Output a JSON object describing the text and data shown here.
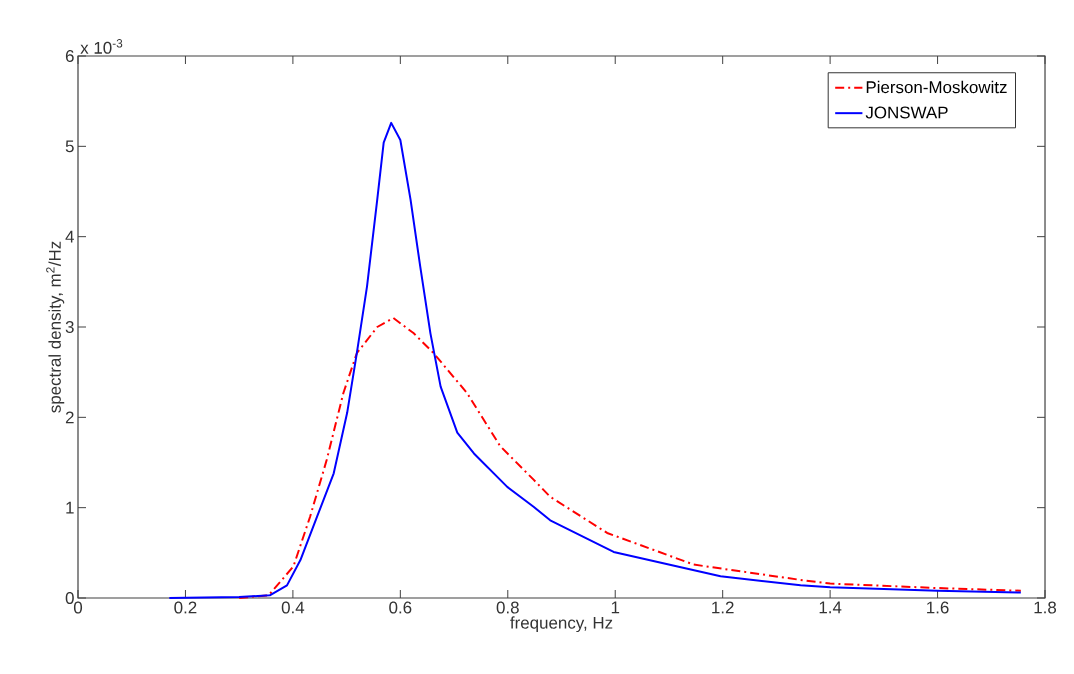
{
  "chart_data": {
    "type": "line",
    "xlabel": "frequency, Hz",
    "ylabel": "spectral density, m$^{2}$/Hz",
    "annotations": [
      "x 10$^{-3}$"
    ],
    "xlim": [
      0,
      1.8
    ],
    "xticks": [
      0,
      0.2,
      0.4,
      0.6,
      0.8,
      1,
      1.2,
      1.4,
      1.6,
      1.8
    ],
    "ylim": [
      0,
      6
    ],
    "yticks": [
      0,
      1,
      2,
      3,
      4,
      5,
      6
    ],
    "legend": "top right",
    "grid": false,
    "marker": "none",
    "series": [
      {
        "name": "Pierson-Moskowitz",
        "color": "#ff0000",
        "line_style": "dashdot",
        "x": [
          0.3,
          0.355,
          0.401,
          0.432,
          0.463,
          0.494,
          0.519,
          0.557,
          0.587,
          0.625,
          0.662,
          0.724,
          0.786,
          0.848,
          0.879,
          0.985,
          1.146,
          1.345,
          1.4,
          1.6,
          1.755
        ],
        "values": [
          0,
          0.03,
          0.35,
          0.9,
          1.53,
          2.27,
          2.71,
          3.0,
          3.1,
          2.93,
          2.71,
          2.27,
          1.68,
          1.31,
          1.12,
          0.72,
          0.37,
          0.2,
          0.16,
          0.11,
          0.08
        ]
      },
      {
        "name": "JONSWAP",
        "color": "#0000ff",
        "line_style": "solid",
        "x": [
          0.17,
          0.3,
          0.357,
          0.389,
          0.414,
          0.445,
          0.476,
          0.501,
          0.519,
          0.538,
          0.557,
          0.569,
          0.583,
          0.6,
          0.619,
          0.637,
          0.656,
          0.675,
          0.706,
          0.737,
          0.799,
          0.848,
          0.879,
          0.997,
          1.196,
          1.345,
          1.4,
          1.6,
          1.755
        ],
        "values": [
          0,
          0.01,
          0.03,
          0.14,
          0.42,
          0.9,
          1.38,
          2.05,
          2.71,
          3.45,
          4.41,
          5.04,
          5.26,
          5.07,
          4.41,
          3.67,
          2.93,
          2.34,
          1.83,
          1.6,
          1.23,
          1.01,
          0.86,
          0.51,
          0.24,
          0.14,
          0.12,
          0.08,
          0.06
        ]
      }
    ]
  }
}
